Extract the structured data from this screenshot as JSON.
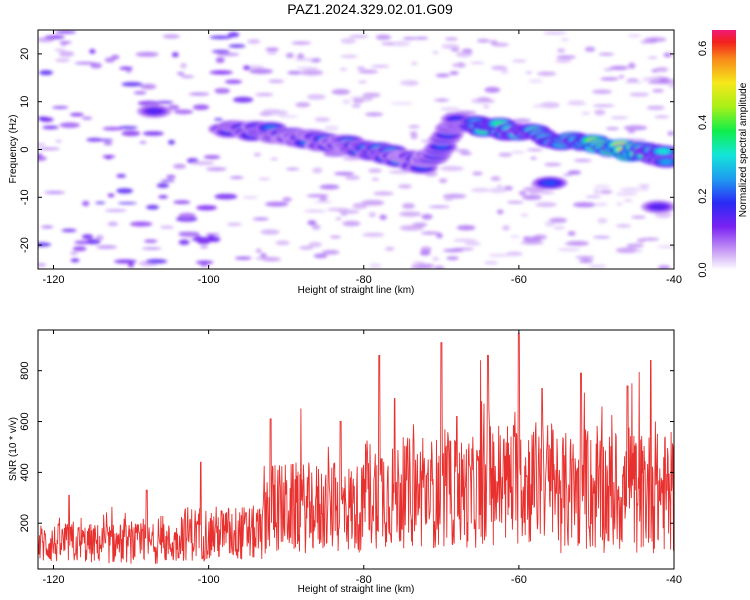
{
  "title": "PAZ1.2024.329.02.01.G09",
  "colors": {
    "snr_line": "#e8302e",
    "axis": "#000000",
    "background": "#ffffff"
  },
  "chart_data": [
    {
      "type": "heatmap",
      "xlabel": "Height of straight line (km)",
      "ylabel": "Frequency (Hz)",
      "xlim": [
        -122,
        -40
      ],
      "ylim": [
        -25,
        25
      ],
      "xticks": [
        -120,
        -100,
        -80,
        -60,
        -40
      ],
      "yticks": [
        -20,
        -10,
        0,
        10,
        20
      ],
      "colorbar": {
        "label": "Normalized spectral amplitude",
        "range": [
          0.0,
          0.65
        ],
        "ticks": [
          0.0,
          0.2,
          0.4,
          0.6
        ],
        "tick_labels": [
          "0.0",
          "0.2",
          "0.4",
          "0.6"
        ],
        "colormap": "rainbow-violet-to-magenta"
      },
      "ridge": {
        "points": [
          {
            "x": -98,
            "y": 4.5,
            "amp": 0.18
          },
          {
            "x": -92,
            "y": 3.5,
            "amp": 0.22
          },
          {
            "x": -88,
            "y": 2.5,
            "amp": 0.2
          },
          {
            "x": -82,
            "y": 1.0,
            "amp": 0.22
          },
          {
            "x": -77,
            "y": -1.0,
            "amp": 0.24
          },
          {
            "x": -72,
            "y": -3.0,
            "amp": 0.18
          },
          {
            "x": -68,
            "y": 5.5,
            "amp": 0.2
          },
          {
            "x": -63,
            "y": 4.5,
            "amp": 0.45
          },
          {
            "x": -58,
            "y": 3.0,
            "amp": 0.32
          },
          {
            "x": -51,
            "y": 1.0,
            "amp": 0.42
          },
          {
            "x": -45,
            "y": -0.5,
            "amp": 0.6
          },
          {
            "x": -41,
            "y": -1.5,
            "amp": 0.25
          }
        ],
        "secondary": [
          {
            "x": -56,
            "y": -7,
            "amp": 0.2
          },
          {
            "x": -42,
            "y": -12,
            "amp": 0.15
          },
          {
            "x": -107,
            "y": 8,
            "amp": 0.15
          }
        ]
      }
    },
    {
      "type": "line",
      "xlabel": "Height of straight line (km)",
      "ylabel": "SNR (10 * v/v)",
      "xlim": [
        -122,
        -40
      ],
      "ylim": [
        20,
        960
      ],
      "xticks": [
        -120,
        -100,
        -80,
        -60,
        -40
      ],
      "yticks": [
        200,
        400,
        600,
        800
      ],
      "series": [
        {
          "segments": [
            {
              "from": -122,
              "to": -104,
              "baseline": 120,
              "spread": 80
            },
            {
              "from": -104,
              "to": -93,
              "baseline": 160,
              "spread": 110
            },
            {
              "from": -93,
              "to": -80,
              "baseline": 260,
              "spread": 180
            },
            {
              "from": -80,
              "to": -65,
              "baseline": 320,
              "spread": 220
            },
            {
              "from": -65,
              "to": -55,
              "baseline": 360,
              "spread": 250
            },
            {
              "from": -55,
              "to": -40,
              "baseline": 320,
              "spread": 240
            }
          ],
          "peaks": [
            {
              "x": -118,
              "y": 310
            },
            {
              "x": -108,
              "y": 330
            },
            {
              "x": -101,
              "y": 440
            },
            {
              "x": -92,
              "y": 610
            },
            {
              "x": -83,
              "y": 600
            },
            {
              "x": -78,
              "y": 860
            },
            {
              "x": -76,
              "y": 690
            },
            {
              "x": -70,
              "y": 910
            },
            {
              "x": -68,
              "y": 620
            },
            {
              "x": -64,
              "y": 860
            },
            {
              "x": -60,
              "y": 945
            },
            {
              "x": -57,
              "y": 730
            },
            {
              "x": -52,
              "y": 790
            },
            {
              "x": -46,
              "y": 740
            },
            {
              "x": -43,
              "y": 840
            }
          ]
        }
      ]
    }
  ]
}
